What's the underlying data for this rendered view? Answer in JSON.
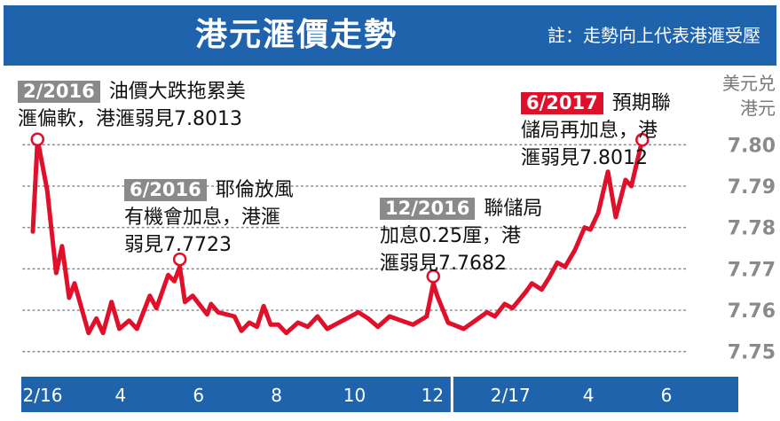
{
  "banner": {
    "title": "港元滙價走勢",
    "note": "註：走勢向上代表港滙受壓"
  },
  "unit": {
    "line1": "美元兑",
    "line2": "港元"
  },
  "annotations": [
    {
      "date": "2/2016",
      "line1": "油價大跌拖累美",
      "line2": "滙偏軟，港滙弱見7.8013"
    },
    {
      "date": "6/2016",
      "line1": "耶倫放風",
      "line2": "有機會加息，港滙",
      "line3": "弱見7.7723"
    },
    {
      "date": "12/2016",
      "line1": "聯儲局",
      "line2": "加息0.25厘，港",
      "line3": "滙弱見7.7682"
    },
    {
      "date": "6/2017",
      "line1": "預期聯",
      "line2": "儲局再加息，港",
      "line3": "滙弱見7.8012"
    }
  ],
  "colors": {
    "banner": "#1f63ad",
    "axis_bar": "#1f63ad",
    "line": "#e0102b",
    "grey_tag": "#8a8a8a",
    "red_tag": "#e0102b"
  },
  "chart_data": {
    "type": "line",
    "title": "港元滙價走勢",
    "ylabel": "美元兑港元",
    "ylim": [
      7.745,
      7.805
    ],
    "yticks": [
      7.75,
      7.76,
      7.77,
      7.78,
      7.79,
      7.8
    ],
    "ytick_labels": [
      "7.75",
      "7.76",
      "7.77",
      "7.78",
      "7.79",
      "7.80"
    ],
    "xlim": [
      0,
      17
    ],
    "xticks": [
      {
        "x": 0.5,
        "label": "2/16"
      },
      {
        "x": 2.5,
        "label": "4"
      },
      {
        "x": 4.5,
        "label": "6"
      },
      {
        "x": 6.5,
        "label": "8"
      },
      {
        "x": 8.5,
        "label": "10"
      },
      {
        "x": 10.5,
        "label": "12"
      },
      {
        "x": 12.5,
        "label": "2/17"
      },
      {
        "x": 14.5,
        "label": "4"
      },
      {
        "x": 16.5,
        "label": "6"
      }
    ],
    "year_divider_x": 11,
    "grid": true,
    "series": [
      {
        "values": [
          [
            0.25,
            7.779
          ],
          [
            0.37,
            7.8013
          ],
          [
            0.62,
            7.789
          ],
          [
            0.85,
            7.769
          ],
          [
            1.0,
            7.7755
          ],
          [
            1.18,
            7.763
          ],
          [
            1.32,
            7.7665
          ],
          [
            1.68,
            7.7545
          ],
          [
            1.88,
            7.758
          ],
          [
            2.05,
            7.7545
          ],
          [
            2.27,
            7.762
          ],
          [
            2.47,
            7.7555
          ],
          [
            2.72,
            7.7575
          ],
          [
            2.92,
            7.7555
          ],
          [
            3.25,
            7.7635
          ],
          [
            3.42,
            7.7605
          ],
          [
            3.72,
            7.7685
          ],
          [
            3.88,
            7.767
          ],
          [
            4.02,
            7.7705
          ],
          [
            4.15,
            7.762
          ],
          [
            4.35,
            7.7635
          ],
          [
            4.72,
            7.759
          ],
          [
            4.82,
            7.7615
          ],
          [
            5.0,
            7.7595
          ],
          [
            5.42,
            7.7585
          ],
          [
            5.6,
            7.755
          ],
          [
            5.8,
            7.757
          ],
          [
            6.0,
            7.756
          ],
          [
            6.17,
            7.761
          ],
          [
            6.35,
            7.7565
          ],
          [
            6.55,
            7.7565
          ],
          [
            6.75,
            7.7545
          ],
          [
            7.05,
            7.757
          ],
          [
            7.3,
            7.756
          ],
          [
            7.55,
            7.7585
          ],
          [
            7.8,
            7.7555
          ],
          [
            8.3,
            7.758
          ],
          [
            8.6,
            7.7595
          ],
          [
            8.85,
            7.758
          ],
          [
            9.1,
            7.756
          ],
          [
            9.4,
            7.7585
          ],
          [
            9.7,
            7.7575
          ],
          [
            10.0,
            7.7565
          ],
          [
            10.35,
            7.7585
          ],
          [
            10.52,
            7.7665
          ],
          [
            10.62,
            7.7635
          ],
          [
            10.9,
            7.757
          ],
          [
            11.3,
            7.7555
          ],
          [
            11.6,
            7.7575
          ],
          [
            11.9,
            7.7595
          ],
          [
            12.1,
            7.7585
          ],
          [
            12.35,
            7.7615
          ],
          [
            12.55,
            7.7605
          ],
          [
            12.9,
            7.7645
          ],
          [
            13.05,
            7.7665
          ],
          [
            13.3,
            7.765
          ],
          [
            13.5,
            7.768
          ],
          [
            13.7,
            7.7715
          ],
          [
            13.9,
            7.7705
          ],
          [
            14.15,
            7.7745
          ],
          [
            14.4,
            7.78
          ],
          [
            14.55,
            7.7795
          ],
          [
            14.75,
            7.7835
          ],
          [
            15.0,
            7.7935
          ],
          [
            15.2,
            7.7825
          ],
          [
            15.45,
            7.7915
          ],
          [
            15.6,
            7.79
          ],
          [
            15.88,
            7.8012
          ]
        ]
      }
    ],
    "highlights": [
      {
        "x": 0.37,
        "y": 7.8013
      },
      {
        "x": 4.02,
        "y": 7.7723
      },
      {
        "x": 10.52,
        "y": 7.7682
      },
      {
        "x": 15.88,
        "y": 7.8012
      }
    ]
  }
}
